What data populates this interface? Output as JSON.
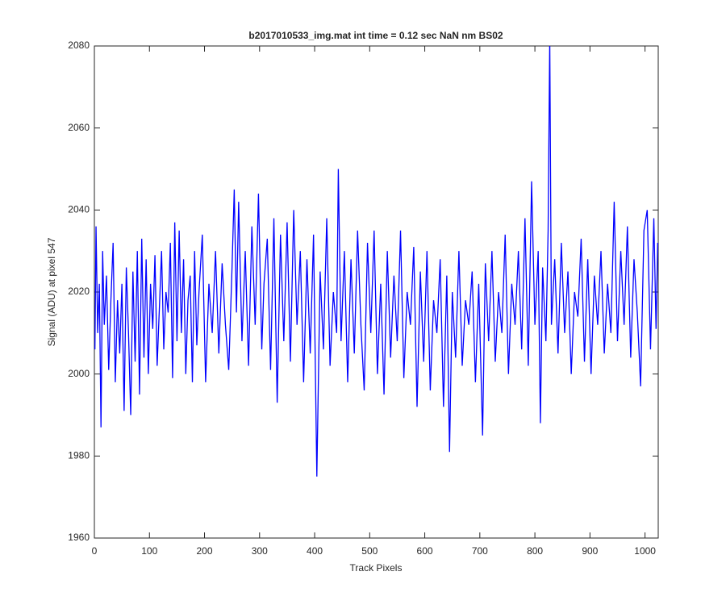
{
  "chart_data": {
    "type": "line",
    "title": "b2017010533_img.mat int time = 0.12 sec  NaN nm BS02",
    "x_label": "Track Pixels",
    "y_label": "Signal (ADU) at pixel 547",
    "xlim": [
      0,
      1024
    ],
    "ylim": [
      1960,
      2080
    ],
    "xticks": [
      0,
      100,
      200,
      300,
      400,
      500,
      600,
      700,
      800,
      900,
      1000
    ],
    "yticks": [
      1960,
      1980,
      2000,
      2020,
      2040,
      2060,
      2080
    ],
    "x": [
      1,
      3,
      6,
      9,
      12,
      15,
      18,
      22,
      26,
      30,
      34,
      38,
      42,
      46,
      50,
      54,
      58,
      62,
      66,
      70,
      74,
      78,
      82,
      86,
      90,
      94,
      98,
      102,
      106,
      110,
      114,
      118,
      122,
      126,
      130,
      134,
      138,
      142,
      146,
      150,
      154,
      158,
      162,
      166,
      170,
      174,
      178,
      182,
      186,
      190,
      196,
      202,
      208,
      214,
      220,
      226,
      232,
      238,
      244,
      250,
      254,
      258,
      262,
      268,
      274,
      280,
      286,
      292,
      298,
      304,
      308,
      314,
      320,
      326,
      332,
      338,
      344,
      350,
      356,
      362,
      368,
      374,
      380,
      386,
      392,
      398,
      404,
      410,
      416,
      422,
      428,
      434,
      440,
      443,
      448,
      454,
      460,
      466,
      472,
      478,
      484,
      490,
      496,
      502,
      508,
      514,
      520,
      526,
      532,
      538,
      544,
      550,
      556,
      562,
      568,
      574,
      580,
      586,
      592,
      598,
      604,
      610,
      616,
      622,
      628,
      634,
      640,
      645,
      650,
      656,
      662,
      668,
      674,
      680,
      686,
      692,
      698,
      705,
      710,
      716,
      722,
      728,
      734,
      740,
      746,
      752,
      758,
      764,
      770,
      776,
      782,
      788,
      794,
      800,
      806,
      810,
      814,
      820,
      824,
      827,
      830,
      836,
      842,
      848,
      854,
      860,
      866,
      872,
      878,
      884,
      890,
      896,
      902,
      908,
      914,
      920,
      926,
      932,
      938,
      944,
      950,
      956,
      962,
      968,
      974,
      980,
      986,
      992,
      998,
      1004,
      1010,
      1016,
      1020,
      1023
    ],
    "series": [
      {
        "color": "#0000ff",
        "values": [
          2006,
          2036,
          2010,
          2022,
          1987,
          2030,
          2012,
          2024,
          2001,
          2018,
          2032,
          1998,
          2018,
          2005,
          2022,
          1991,
          2026,
          2010,
          1990,
          2025,
          2003,
          2030,
          1995,
          2033,
          2004,
          2028,
          2000,
          2022,
          2011,
          2029,
          2002,
          2016,
          2030,
          2006,
          2020,
          2015,
          2032,
          1999,
          2037,
          2008,
          2035,
          2010,
          2028,
          2000,
          2018,
          2024,
          1998,
          2030,
          2007,
          2020,
          2034,
          1998,
          2022,
          2010,
          2030,
          2005,
          2027,
          2012,
          2001,
          2026,
          2045,
          2015,
          2042,
          2008,
          2030,
          2002,
          2036,
          2012,
          2044,
          2006,
          2022,
          2033,
          2001,
          2038,
          1993,
          2034,
          2008,
          2037,
          2003,
          2040,
          2012,
          2030,
          1998,
          2028,
          2005,
          2034,
          1975,
          2025,
          2006,
          2038,
          2002,
          2020,
          2010,
          2050,
          2008,
          2030,
          1998,
          2028,
          2005,
          2035,
          2012,
          1996,
          2032,
          2010,
          2035,
          2000,
          2022,
          1995,
          2030,
          2004,
          2024,
          2008,
          2035,
          1999,
          2020,
          2012,
          2031,
          1992,
          2025,
          2003,
          2030,
          1996,
          2018,
          2010,
          2028,
          1992,
          2024,
          1981,
          2020,
          2004,
          2030,
          2002,
          2018,
          2012,
          2025,
          1998,
          2022,
          1985,
          2027,
          2008,
          2030,
          2003,
          2020,
          2010,
          2034,
          2000,
          2022,
          2012,
          2030,
          2006,
          2038,
          2002,
          2047,
          2012,
          2030,
          1988,
          2026,
          2008,
          2035,
          2082,
          2012,
          2028,
          2005,
          2032,
          2010,
          2025,
          2000,
          2020,
          2014,
          2033,
          2003,
          2028,
          2000,
          2024,
          2012,
          2030,
          2005,
          2022,
          2010,
          2042,
          2008,
          2030,
          2012,
          2036,
          2004,
          2028,
          2015,
          1997,
          2035,
          2040,
          2006,
          2038,
          2011,
          2032
        ]
      }
    ]
  }
}
